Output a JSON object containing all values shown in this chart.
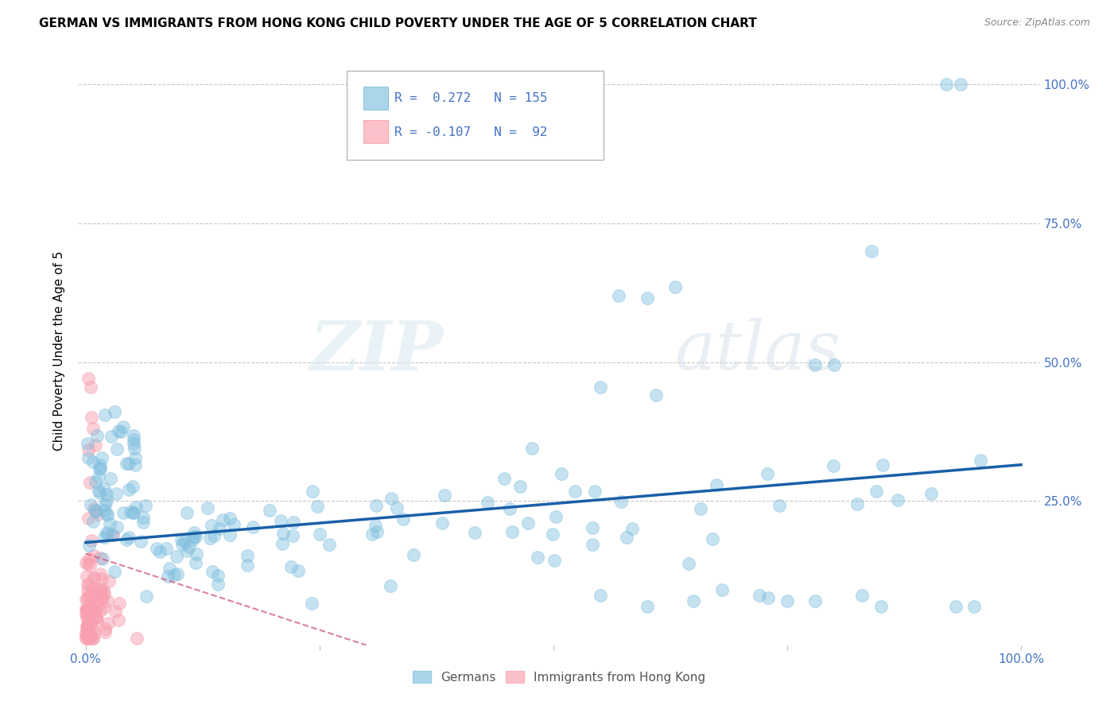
{
  "title": "GERMAN VS IMMIGRANTS FROM HONG KONG CHILD POVERTY UNDER THE AGE OF 5 CORRELATION CHART",
  "source": "Source: ZipAtlas.com",
  "ylabel": "Child Poverty Under the Age of 5",
  "legend_r_blue": "R =  0.272",
  "legend_n_blue": "N = 155",
  "legend_r_pink": "R = -0.107",
  "legend_n_pink": "N =  92",
  "legend_label_blue": "Germans",
  "legend_label_pink": "Immigrants from Hong Kong",
  "blue_color": "#7fbfdf",
  "pink_color": "#f8a0b0",
  "trendline_blue": "#1a5fa8",
  "trendline_pink": "#d06080",
  "watermark_zip": "ZIP",
  "watermark_atlas": "atlas",
  "title_fontsize": 11,
  "source_fontsize": 9,
  "tick_label_color": "#4472c4",
  "background_color": "#ffffff",
  "grid_color": "#c8c8c8"
}
